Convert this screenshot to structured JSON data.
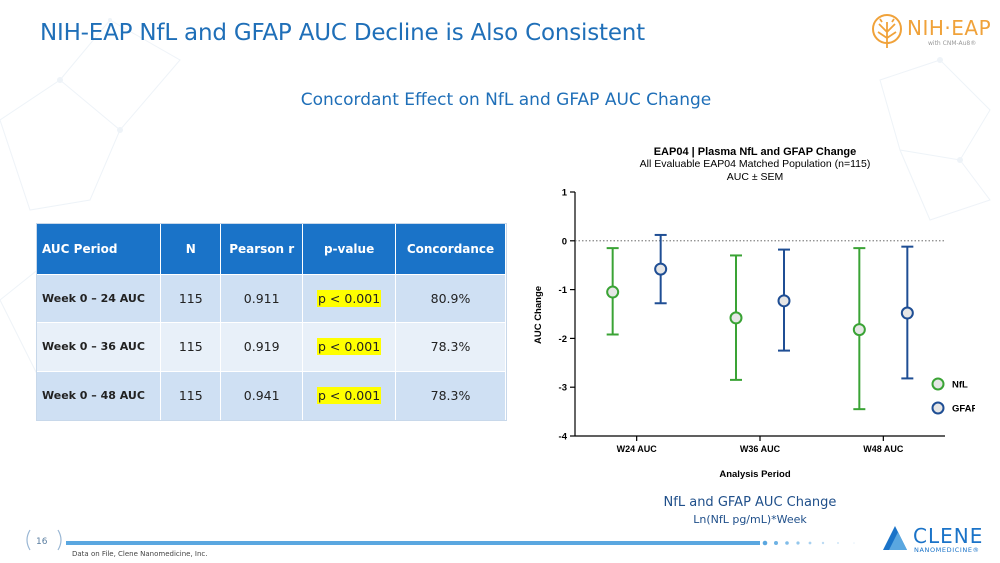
{
  "page": {
    "title": "NIH-EAP NfL and GFAP AUC Decline is Also Consistent",
    "subtitle": "Concordant Effect on NfL and GFAP AUC Change",
    "page_number": "16",
    "footnote": "Data on File, Clene Nanomedicine, Inc.",
    "logo_text": "NIH·EAP",
    "logo_sub": "with CNM-Au8®",
    "clene_text": "CLENE",
    "clene_sub": "NANOMEDICINE®"
  },
  "table": {
    "headers": [
      "AUC Period",
      "N",
      "Pearson r",
      "p-value",
      "Concordance"
    ],
    "rows": [
      {
        "period": "Week 0 – 24 AUC",
        "n": "115",
        "r": "0.911",
        "p": "p < 0.001",
        "concordance": "80.9%"
      },
      {
        "period": "Week 0 – 36 AUC",
        "n": "115",
        "r": "0.919",
        "p": "p < 0.001",
        "concordance": "78.3%"
      },
      {
        "period": "Week 0 – 48 AUC",
        "n": "115",
        "r": "0.941",
        "p": "p < 0.001",
        "concordance": "78.3%"
      }
    ]
  },
  "chart_data": {
    "type": "scatter",
    "title": "EAP04 | Plasma NfL and GFAP Change",
    "subtitle_lines": [
      "All Evaluable EAP04 Matched Population (n=115)",
      "AUC ± SEM"
    ],
    "xlabel": "Analysis Period",
    "ylabel": "AUC Change",
    "categories": [
      "W24 AUC",
      "W36 AUC",
      "W48 AUC"
    ],
    "ylim": [
      -4,
      1
    ],
    "yticks": [
      1,
      0,
      -1,
      -2,
      -3,
      -4
    ],
    "reference_line": 0,
    "legend_position": "bottom-right",
    "series": [
      {
        "name": "NfL",
        "color": "#3aa335",
        "values": [
          -1.05,
          -1.58,
          -1.82
        ],
        "lower": [
          -1.92,
          -2.85,
          -3.45
        ],
        "upper": [
          -0.15,
          -0.3,
          -0.15
        ]
      },
      {
        "name": "GFAP",
        "color": "#1f4e94",
        "values": [
          -0.58,
          -1.23,
          -1.48
        ],
        "lower": [
          -1.28,
          -2.25,
          -2.82
        ],
        "upper": [
          0.12,
          -0.18,
          -0.12
        ]
      }
    ]
  },
  "captions": {
    "line1": "NfL and GFAP AUC Change",
    "line2": "Ln(NfL pg/mL)*Week"
  }
}
